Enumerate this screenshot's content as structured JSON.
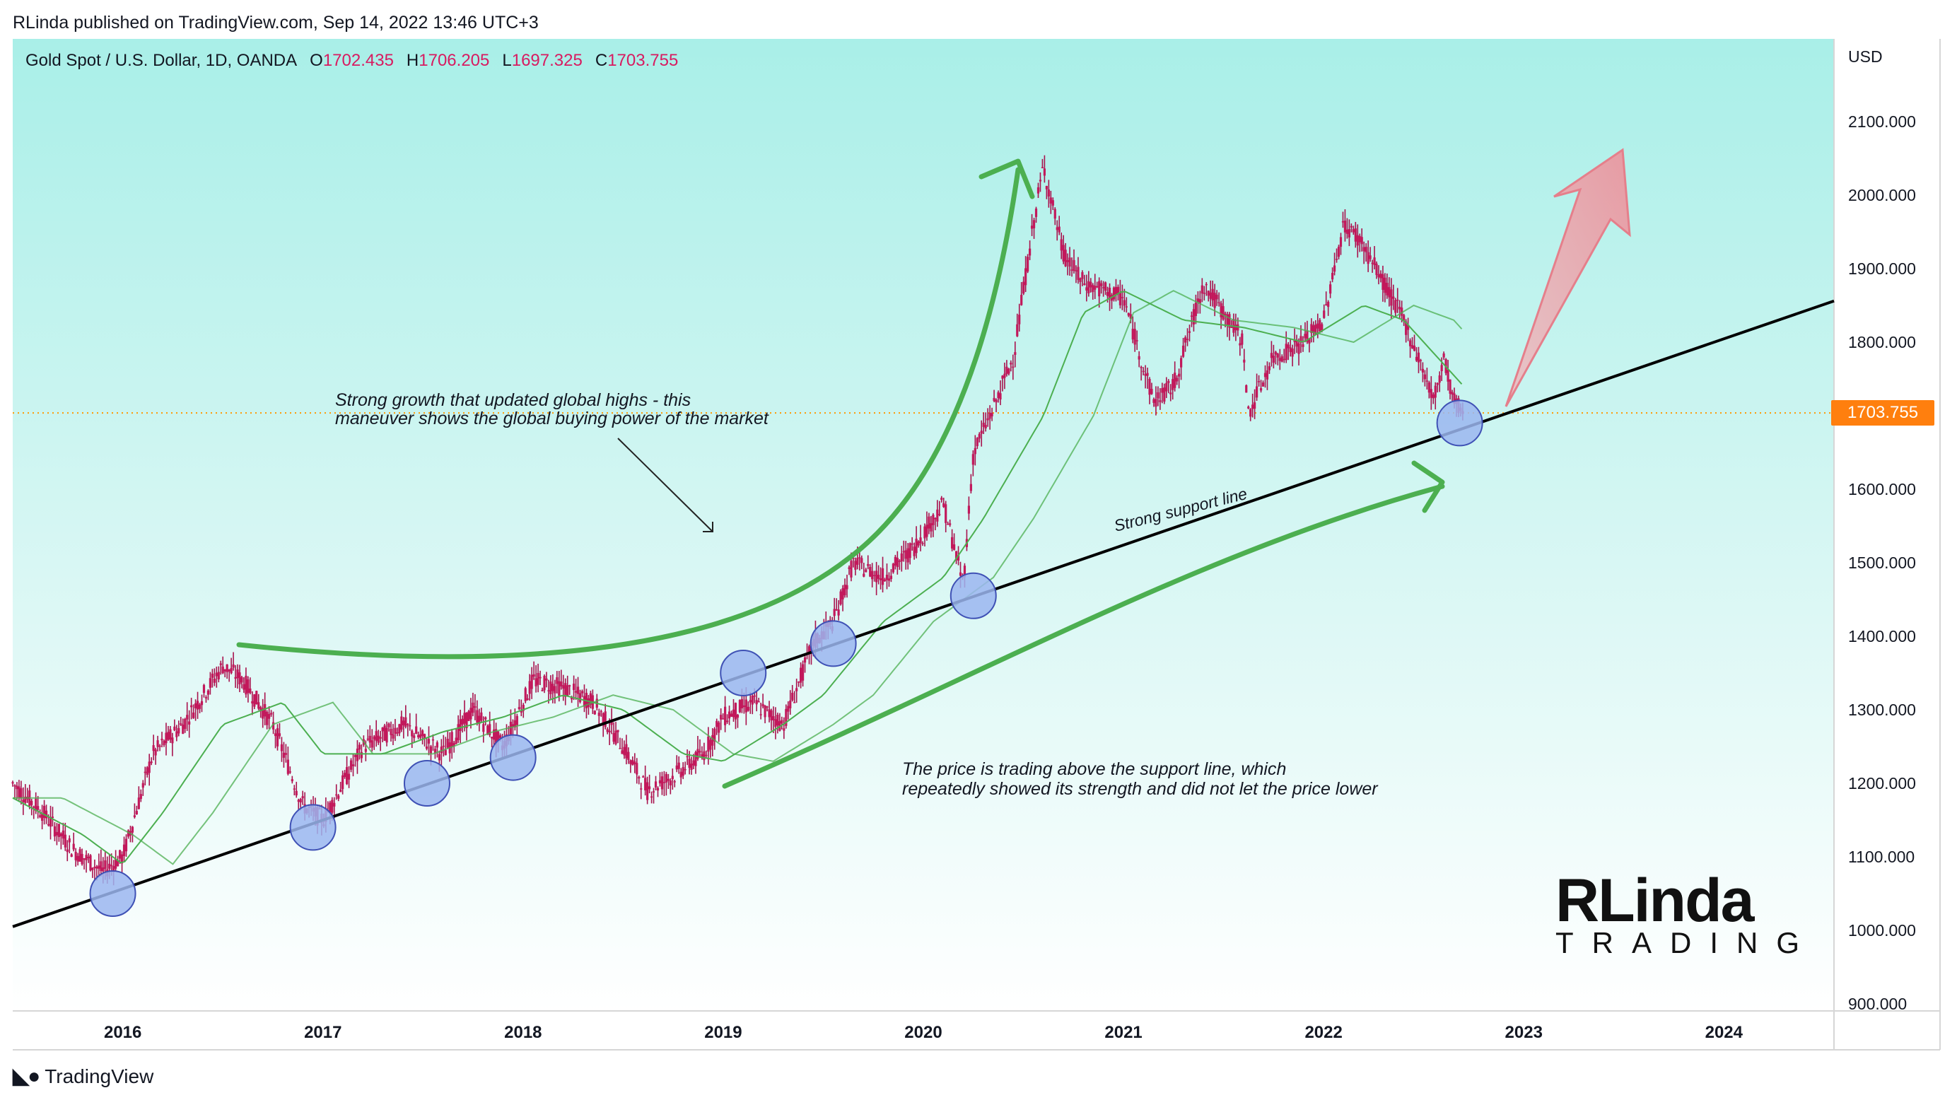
{
  "header": {
    "published": "RLinda published on TradingView.com, Sep 14, 2022 13:46 UTC+3"
  },
  "legend": {
    "symbol": "Gold Spot / U.S. Dollar, 1D, OANDA",
    "o_label": "O",
    "o_value": "1702.435",
    "h_label": "H",
    "h_value": "1706.205",
    "l_label": "L",
    "l_value": "1697.325",
    "c_label": "C",
    "c_value": "1703.755"
  },
  "axis": {
    "currency": "USD",
    "last_price": "1703.755"
  },
  "annotations": {
    "growth_line1": "Strong growth that updated global highs - this",
    "growth_line2": "maneuver shows the global buying power of the market",
    "support_label": "Strong support line",
    "trading_line1": "The price is trading above the support line, which",
    "trading_line2": "repeatedly showed its strength and did not let the price lower"
  },
  "brand": {
    "name_big": "RLinda",
    "name_small": "TRADING"
  },
  "footer": {
    "tv": "TradingView"
  },
  "colors": {
    "bg_top": "#adeee8",
    "bg_bottom": "#ffffff",
    "candle": "#c2185b",
    "ma": "#4caf50",
    "arrow_green": "#4caf50",
    "arrow_red": "#f28b94",
    "support": "#000000",
    "circle_fill": "#9bb6f0",
    "circle_stroke": "#3f51b5",
    "price_tag": "#ff7f0e"
  },
  "chart_data": {
    "type": "line",
    "title": "Gold Spot / U.S. Dollar, 1D, OANDA",
    "y_unit": "USD",
    "ylim": [
      900,
      2150
    ],
    "xlim": [
      2015.45,
      2024.55
    ],
    "x_ticks": [
      "2016",
      "2017",
      "2018",
      "2019",
      "2020",
      "2021",
      "2022",
      "2023",
      "2024"
    ],
    "y_ticks": [
      "2100.000",
      "2000.000",
      "1900.000",
      "1800.000",
      "1700.000",
      "1600.000",
      "1500.000",
      "1400.000",
      "1300.000",
      "1200.000",
      "1100.000",
      "1000.000",
      "900.000"
    ],
    "series": [
      {
        "kind": "price",
        "x": [
          2015.45,
          2015.6,
          2015.75,
          2015.9,
          2016.0,
          2016.15,
          2016.3,
          2016.5,
          2016.6,
          2016.75,
          2016.9,
          2017.0,
          2017.2,
          2017.4,
          2017.6,
          2017.75,
          2017.9,
          2018.05,
          2018.2,
          2018.35,
          2018.5,
          2018.62,
          2018.75,
          2018.9,
          2019.0,
          2019.15,
          2019.3,
          2019.45,
          2019.55,
          2019.65,
          2019.8,
          2019.95,
          2020.1,
          2020.2,
          2020.25,
          2020.35,
          2020.45,
          2020.55,
          2020.6,
          2020.7,
          2020.8,
          2020.9,
          2021.0,
          2021.15,
          2021.25,
          2021.4,
          2021.6,
          2021.62,
          2021.75,
          2021.9,
          2022.0,
          2022.1,
          2022.18,
          2022.3,
          2022.4,
          2022.5,
          2022.55,
          2022.6,
          2022.65,
          2022.7
        ],
        "y": [
          1200,
          1160,
          1110,
          1080,
          1100,
          1240,
          1280,
          1360,
          1340,
          1280,
          1170,
          1150,
          1250,
          1280,
          1240,
          1300,
          1250,
          1340,
          1330,
          1310,
          1250,
          1190,
          1210,
          1240,
          1290,
          1310,
          1280,
          1390,
          1420,
          1500,
          1480,
          1520,
          1580,
          1470,
          1650,
          1710,
          1780,
          1960,
          2040,
          1920,
          1880,
          1870,
          1860,
          1720,
          1740,
          1880,
          1800,
          1700,
          1780,
          1800,
          1830,
          1960,
          1940,
          1880,
          1830,
          1760,
          1720,
          1780,
          1720,
          1704
        ]
      },
      {
        "kind": "moving_average",
        "x": [
          2015.45,
          2015.8,
          2016.0,
          2016.2,
          2016.5,
          2016.8,
          2017.0,
          2017.3,
          2017.6,
          2017.9,
          2018.2,
          2018.5,
          2018.8,
          2019.0,
          2019.3,
          2019.5,
          2019.8,
          2020.1,
          2020.3,
          2020.6,
          2020.8,
          2021.0,
          2021.3,
          2021.6,
          2021.9,
          2022.2,
          2022.4,
          2022.6,
          2022.7
        ],
        "y": [
          1180,
          1130,
          1090,
          1160,
          1280,
          1310,
          1240,
          1240,
          1270,
          1290,
          1320,
          1300,
          1240,
          1230,
          1280,
          1320,
          1420,
          1480,
          1560,
          1700,
          1840,
          1870,
          1830,
          1820,
          1800,
          1850,
          1830,
          1770,
          1740
        ]
      },
      {
        "kind": "support_line",
        "x": [
          2015.45,
          2024.55
        ],
        "y": [
          1005,
          1856
        ]
      }
    ],
    "support_touches": [
      {
        "x": 2015.95,
        "y": 1050
      },
      {
        "x": 2016.95,
        "y": 1140
      },
      {
        "x": 2017.52,
        "y": 1200
      },
      {
        "x": 2017.95,
        "y": 1235
      },
      {
        "x": 2019.1,
        "y": 1350
      },
      {
        "x": 2019.55,
        "y": 1390
      },
      {
        "x": 2020.25,
        "y": 1455
      },
      {
        "x": 2022.68,
        "y": 1690
      }
    ],
    "last_price": 1703.755
  }
}
